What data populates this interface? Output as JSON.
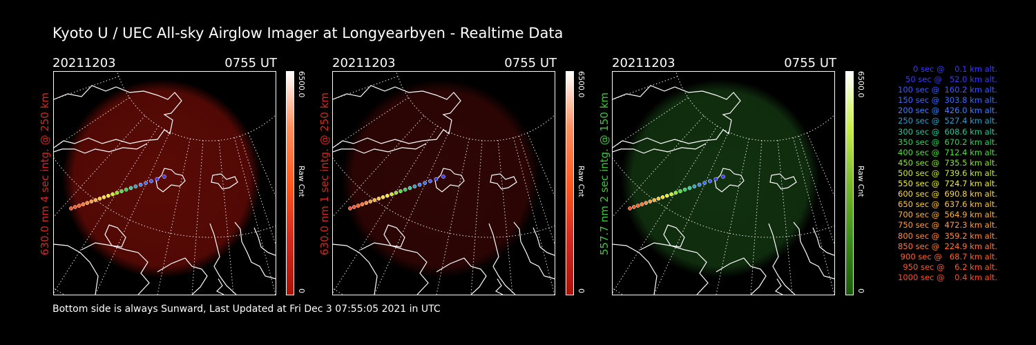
{
  "title": "Kyoto U / UEC All-sky Airglow Imager at Longyearbyen - Realtime Data",
  "footer": "Bottom side is always Sunward, Last Updated at Fri Dec  3 07:55:05 2021 in UTC",
  "panels": [
    {
      "date": "20211203",
      "time": "0755 UT",
      "side_label": "630.0 nm 4 sec intg. @ 250 km",
      "label_color": "#d22a1e",
      "glow_color": "#6a0c06",
      "glow_opacity": 0.85,
      "colorbar_max": "6500.0",
      "colorbar_min": "0",
      "colorbar_unit": "Raw Cnt",
      "colorbar_gradient": [
        "#ffffff",
        "#ff9060",
        "#ff5a1e",
        "#d22a1e",
        "#aa1208"
      ]
    },
    {
      "date": "20211203",
      "time": "0755 UT",
      "side_label": "630.0 nm 1 sec intg. @ 250 km",
      "label_color": "#d22a1e",
      "glow_color": "#3a0706",
      "glow_opacity": 0.8,
      "colorbar_max": "6500.0",
      "colorbar_min": "0",
      "colorbar_unit": "Raw Cnt",
      "colorbar_gradient": [
        "#ffffff",
        "#ff9060",
        "#ff5a1e",
        "#d22a1e",
        "#aa1208"
      ]
    },
    {
      "date": "20211203",
      "time": "0755 UT",
      "side_label": "557.7 nm 2 sec intg. @ 150 km",
      "label_color": "#3ec83a",
      "glow_color": "#143a12",
      "glow_opacity": 0.85,
      "colorbar_max": "6500.0",
      "colorbar_min": "0",
      "colorbar_unit": "Raw Cnt",
      "colorbar_gradient": [
        "#ffffff",
        "#c8f04a",
        "#7ab830",
        "#3e8c1e",
        "#1a5a0c"
      ]
    }
  ],
  "trajectory_legend": [
    {
      "text": "   0 sec @    0.1 km alt.",
      "color": "#3a3aff"
    },
    {
      "text": "  50 sec @   52.0 km alt.",
      "color": "#3a3aff"
    },
    {
      "text": " 100 sec @  160.2 km alt.",
      "color": "#3c5aff"
    },
    {
      "text": " 150 sec @  303.8 km alt.",
      "color": "#3c6cff"
    },
    {
      "text": " 200 sec @  426.0 km alt.",
      "color": "#3c82ff"
    },
    {
      "text": " 250 sec @  527.4 km alt.",
      "color": "#2ea0c8"
    },
    {
      "text": " 300 sec @  608.6 km alt.",
      "color": "#28c89a"
    },
    {
      "text": " 350 sec @  670.2 km alt.",
      "color": "#32d25a"
    },
    {
      "text": " 400 sec @  712.4 km alt.",
      "color": "#4ee03a"
    },
    {
      "text": " 450 sec @  735.5 km alt.",
      "color": "#8ee632"
    },
    {
      "text": " 500 sec @  739.6 km alt.",
      "color": "#c8ee32"
    },
    {
      "text": " 550 sec @  724.7 km alt.",
      "color": "#f0f032"
    },
    {
      "text": " 600 sec @  690.8 km alt.",
      "color": "#ffdc3c"
    },
    {
      "text": " 650 sec @  637.6 km alt.",
      "color": "#ffc83c"
    },
    {
      "text": " 700 sec @  564.9 km alt.",
      "color": "#ffb43c"
    },
    {
      "text": " 750 sec @  472.3 km alt.",
      "color": "#ffa03c"
    },
    {
      "text": " 800 sec @  359.2 km alt.",
      "color": "#ff8c3c"
    },
    {
      "text": " 850 sec @  224.9 km alt.",
      "color": "#ff7832"
    },
    {
      "text": " 900 sec @   68.7 km alt.",
      "color": "#ff6428"
    },
    {
      "text": " 950 sec @    6.2 km alt.",
      "color": "#ff5a28"
    },
    {
      "text": "1000 sec @    0.4 km alt.",
      "color": "#ff5028"
    }
  ]
}
